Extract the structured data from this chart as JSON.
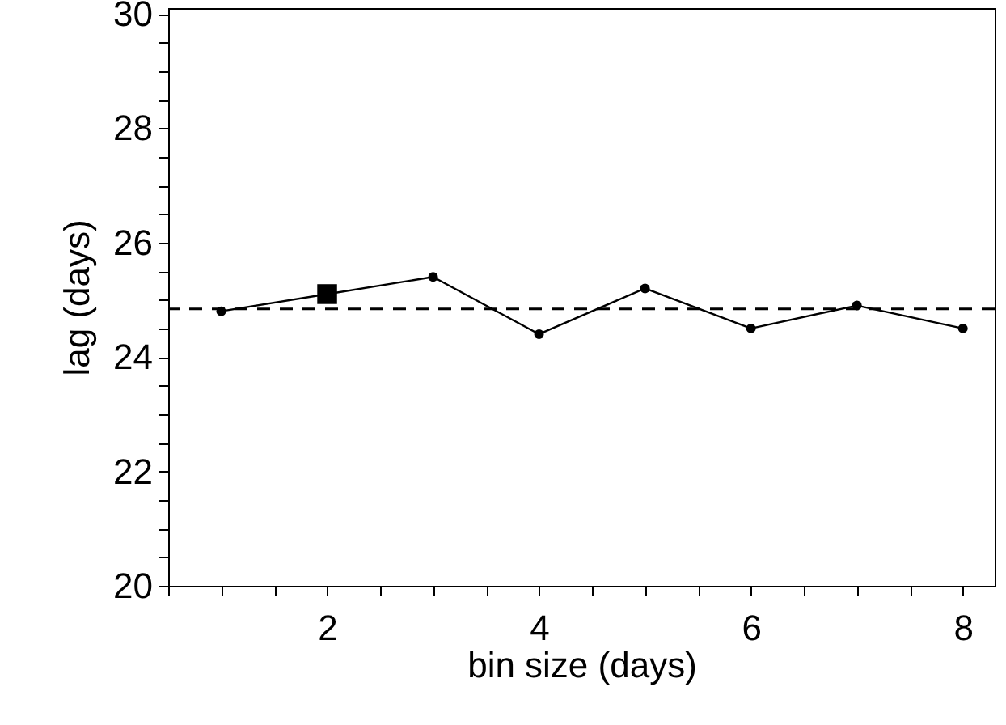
{
  "chart_data": {
    "type": "line",
    "xlabel": "bin size (days)",
    "ylabel": "lag (days)",
    "x": [
      1,
      2,
      3,
      4,
      5,
      6,
      7,
      8
    ],
    "series": [
      {
        "color": "#000000",
        "marker": "circle",
        "values": [
          24.8,
          25.1,
          25.4,
          24.4,
          25.2,
          24.5,
          24.9,
          24.5
        ]
      },
      {
        "type": "scatter",
        "color": "#000000",
        "marker": "square",
        "x": [
          2
        ],
        "values": [
          25.1
        ]
      }
    ],
    "xlim": [
      0.5,
      8.3
    ],
    "ylim": [
      20,
      30.1
    ],
    "xticks": [
      {
        "value": 0.5,
        "label": null
      },
      {
        "value": 1,
        "label": null
      },
      {
        "value": 1.5,
        "label": null
      },
      2,
      {
        "value": 2.5,
        "label": null
      },
      {
        "value": 3,
        "label": null
      },
      {
        "value": 3.5,
        "label": null
      },
      4,
      {
        "value": 4.5,
        "label": null
      },
      {
        "value": 5,
        "label": null
      },
      {
        "value": 5.5,
        "label": null
      },
      6,
      {
        "value": 6.5,
        "label": null
      },
      {
        "value": 7,
        "label": null
      },
      {
        "value": 7.5,
        "label": null
      },
      8
    ],
    "yticks": [
      20,
      {
        "value": 20.5,
        "label": null
      },
      {
        "value": 21,
        "label": null
      },
      {
        "value": 21.5,
        "label": null
      },
      22,
      {
        "value": 22.5,
        "label": null
      },
      {
        "value": 23,
        "label": null
      },
      {
        "value": 23.5,
        "label": null
      },
      24,
      {
        "value": 24.5,
        "label": null
      },
      {
        "value": 25,
        "label": null
      },
      {
        "value": 25.5,
        "label": null
      },
      26,
      {
        "value": 26.5,
        "label": null
      },
      {
        "value": 27,
        "label": null
      },
      {
        "value": 27.5,
        "label": null
      },
      28,
      {
        "value": 28.5,
        "label": null
      },
      {
        "value": 29,
        "label": null
      },
      {
        "value": 29.5,
        "label": null
      },
      30
    ],
    "ref_lines": [
      {
        "axis": "y",
        "value": 24.84,
        "color": "#000000",
        "line_style": "dashed"
      }
    ],
    "grid": false
  }
}
